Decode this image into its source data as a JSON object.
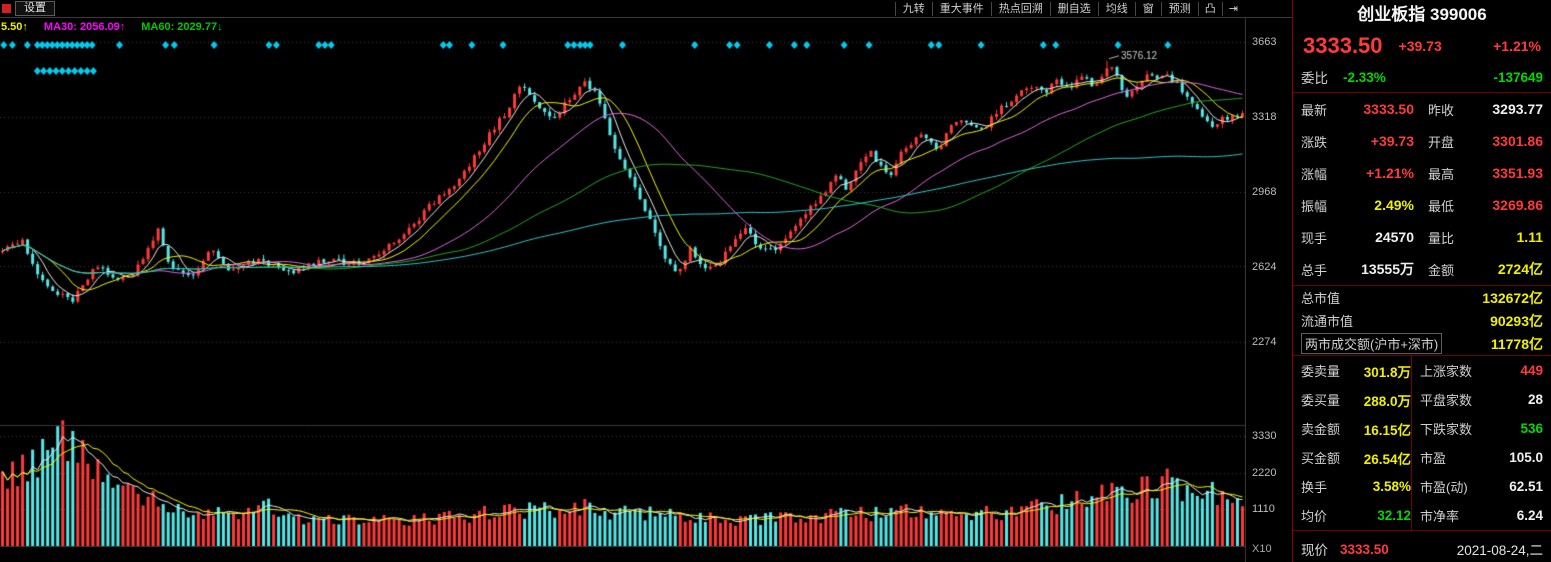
{
  "colors": {
    "red": "#ff3a3a",
    "green": "#00d800",
    "yellow": "#f0f000",
    "white": "#f0f0f0",
    "label": "#d0d0d0",
    "cyan_down": "#54e8e8",
    "grid": "#3a3a3a",
    "axis_text": "#bdbdbd",
    "panel_divider": "#6e0000",
    "diamond": "#00ccf0"
  },
  "toolbar": {
    "settings_label": "设置",
    "items": [
      "九转",
      "重大事件",
      "热点回溯",
      "删自选",
      "均线",
      "窗",
      "预测"
    ],
    "icons": [
      {
        "glyph": "凸",
        "name": "window-mode-icon"
      },
      {
        "glyph": "⇥",
        "name": "jump-latest-icon"
      }
    ]
  },
  "ma_labels": [
    {
      "text": "5.50↑",
      "color": "#f0f000"
    },
    {
      "text": "MA30: 2056.09↑",
      "color": "#ff00ff"
    },
    {
      "text": "MA60: 2029.77↓",
      "color": "#00c800"
    }
  ],
  "chart": {
    "price_axis": [
      "3663",
      "3318",
      "2968",
      "2624",
      "2274"
    ],
    "volume_axis": [
      "3330",
      "2220",
      "1110"
    ],
    "volume_unit": "X10",
    "peak_annotation": "3576.12"
  },
  "chart_data": {
    "type": "candlestick+volume",
    "candle_count": 248,
    "price_axis_values": [
      3663,
      3318,
      2968,
      2624,
      2274
    ],
    "volume_axis_values": [
      3330,
      2220,
      1110
    ],
    "last_close": 3333.5,
    "peak_high": 3576.12,
    "peak_t": 0.892,
    "up_color": "#ff3a3a",
    "down_color": "#54e8e8",
    "ma_windows": [
      5,
      10,
      30,
      60,
      120
    ],
    "ma_colors": [
      "#e8e8e8",
      "#f5f500",
      "#e066e0",
      "#22aa22",
      "#30c8c8"
    ],
    "vol_ma_colors": [
      "#e8e8e8",
      "#f5f500"
    ],
    "price_anchors": [
      [
        0,
        2690
      ],
      [
        0.016,
        2745
      ],
      [
        0.03,
        2560
      ],
      [
        0.056,
        2455
      ],
      [
        0.075,
        2625
      ],
      [
        0.1,
        2555
      ],
      [
        0.118,
        2705
      ],
      [
        0.126,
        2795
      ],
      [
        0.135,
        2620
      ],
      [
        0.155,
        2575
      ],
      [
        0.168,
        2710
      ],
      [
        0.185,
        2600
      ],
      [
        0.205,
        2655
      ],
      [
        0.23,
        2595
      ],
      [
        0.26,
        2655
      ],
      [
        0.285,
        2635
      ],
      [
        0.305,
        2690
      ],
      [
        0.325,
        2770
      ],
      [
        0.345,
        2910
      ],
      [
        0.365,
        3010
      ],
      [
        0.378,
        3110
      ],
      [
        0.392,
        3230
      ],
      [
        0.405,
        3330
      ],
      [
        0.418,
        3465
      ],
      [
        0.43,
        3370
      ],
      [
        0.443,
        3300
      ],
      [
        0.456,
        3390
      ],
      [
        0.47,
        3480
      ],
      [
        0.48,
        3415
      ],
      [
        0.493,
        3190
      ],
      [
        0.505,
        3040
      ],
      [
        0.515,
        2940
      ],
      [
        0.525,
        2790
      ],
      [
        0.535,
        2650
      ],
      [
        0.545,
        2605
      ],
      [
        0.555,
        2700
      ],
      [
        0.565,
        2620
      ],
      [
        0.578,
        2645
      ],
      [
        0.59,
        2755
      ],
      [
        0.6,
        2800
      ],
      [
        0.61,
        2715
      ],
      [
        0.625,
        2705
      ],
      [
        0.64,
        2805
      ],
      [
        0.652,
        2905
      ],
      [
        0.662,
        2950
      ],
      [
        0.673,
        3055
      ],
      [
        0.681,
        2985
      ],
      [
        0.69,
        3085
      ],
      [
        0.7,
        3150
      ],
      [
        0.708,
        3095
      ],
      [
        0.716,
        3050
      ],
      [
        0.726,
        3155
      ],
      [
        0.74,
        3230
      ],
      [
        0.754,
        3165
      ],
      [
        0.765,
        3265
      ],
      [
        0.776,
        3305
      ],
      [
        0.79,
        3255
      ],
      [
        0.8,
        3330
      ],
      [
        0.814,
        3400
      ],
      [
        0.828,
        3460
      ],
      [
        0.84,
        3425
      ],
      [
        0.85,
        3480
      ],
      [
        0.86,
        3445
      ],
      [
        0.87,
        3505
      ],
      [
        0.88,
        3455
      ],
      [
        0.892,
        3560
      ],
      [
        0.9,
        3485
      ],
      [
        0.908,
        3390
      ],
      [
        0.916,
        3480
      ],
      [
        0.924,
        3515
      ],
      [
        0.932,
        3485
      ],
      [
        0.94,
        3505
      ],
      [
        0.95,
        3455
      ],
      [
        0.958,
        3385
      ],
      [
        0.966,
        3325
      ],
      [
        0.974,
        3278
      ],
      [
        0.983,
        3305
      ],
      [
        1,
        3333.5
      ]
    ],
    "volume_anchors": [
      [
        0,
        1900
      ],
      [
        0.02,
        2500
      ],
      [
        0.045,
        3250
      ],
      [
        0.06,
        2750
      ],
      [
        0.08,
        2100
      ],
      [
        0.1,
        1700
      ],
      [
        0.13,
        1300
      ],
      [
        0.16,
        1050
      ],
      [
        0.19,
        900
      ],
      [
        0.21,
        1350
      ],
      [
        0.23,
        850
      ],
      [
        0.27,
        760
      ],
      [
        0.32,
        780
      ],
      [
        0.37,
        900
      ],
      [
        0.41,
        1120
      ],
      [
        0.45,
        1050
      ],
      [
        0.47,
        1150
      ],
      [
        0.5,
        1000
      ],
      [
        0.53,
        950
      ],
      [
        0.56,
        820
      ],
      [
        0.6,
        800
      ],
      [
        0.64,
        850
      ],
      [
        0.68,
        950
      ],
      [
        0.72,
        1000
      ],
      [
        0.75,
        1050
      ],
      [
        0.78,
        950
      ],
      [
        0.81,
        1050
      ],
      [
        0.84,
        1200
      ],
      [
        0.87,
        1400
      ],
      [
        0.9,
        1600
      ],
      [
        0.92,
        1750
      ],
      [
        0.94,
        1900
      ],
      [
        0.96,
        1700
      ],
      [
        0.98,
        1600
      ],
      [
        1,
        1450
      ]
    ],
    "diamond_rows": [
      {
        "y": 45,
        "t": [
          0.003,
          0.01,
          0.022,
          0.03,
          0.034,
          0.038,
          0.042,
          0.046,
          0.05,
          0.054,
          0.058,
          0.062,
          0.066,
          0.07,
          0.074,
          0.096,
          0.133,
          0.14,
          0.172,
          0.216,
          0.222,
          0.256,
          0.261,
          0.266,
          0.356,
          0.361,
          0.379,
          0.404,
          0.456,
          0.461,
          0.466,
          0.47,
          0.474,
          0.5,
          0.558,
          0.586,
          0.592,
          0.618,
          0.638,
          0.648,
          0.678,
          0.698,
          0.748,
          0.754,
          0.788,
          0.838,
          0.848,
          0.898,
          0.938
        ]
      },
      {
        "y": 71,
        "t": [
          0.03,
          0.035,
          0.04,
          0.045,
          0.05,
          0.055,
          0.06,
          0.065,
          0.07,
          0.075
        ]
      }
    ]
  },
  "quote_panel": {
    "title": "创业板指 399006",
    "price": "3333.50",
    "change": "+39.73",
    "change_pct": "+1.21%",
    "weibi_label": "委比",
    "weibi_value": "-2.33%",
    "weicha_value": "-137649",
    "rows_main": [
      {
        "l1": "最新",
        "v1": "3333.50",
        "c1": "red",
        "l2": "昨收",
        "v2": "3293.77",
        "c2": "white"
      },
      {
        "l1": "涨跌",
        "v1": "+39.73",
        "c1": "red",
        "l2": "开盘",
        "v2": "3301.86",
        "c2": "red"
      },
      {
        "l1": "涨幅",
        "v1": "+1.21%",
        "c1": "red",
        "l2": "最高",
        "v2": "3351.93",
        "c2": "red"
      },
      {
        "l1": "振幅",
        "v1": "2.49%",
        "c1": "yellow",
        "l2": "最低",
        "v2": "3269.86",
        "c2": "red"
      },
      {
        "l1": "现手",
        "v1": "24570",
        "c1": "white",
        "l2": "量比",
        "v2": "1.11",
        "c2": "yellow"
      },
      {
        "l1": "总手",
        "v1": "13555万",
        "c1": "white",
        "l2": "金额",
        "v2": "2724亿",
        "c2": "yellow"
      }
    ],
    "rows_cap": [
      {
        "label": "总市值",
        "value": "132672亿",
        "color": "yellow",
        "boxed": false
      },
      {
        "label": "流通市值",
        "value": "90293亿",
        "color": "yellow",
        "boxed": false
      },
      {
        "label": "两市成交额(沪市+深市)",
        "value": "11778亿",
        "color": "yellow",
        "boxed": true
      }
    ],
    "rows_detail": [
      {
        "l1": "委卖量",
        "v1": "301.8万",
        "c1": "yellow",
        "l2": "上涨家数",
        "v2": "449",
        "c2": "red"
      },
      {
        "l1": "委买量",
        "v1": "288.0万",
        "c1": "yellow",
        "l2": "平盘家数",
        "v2": "28",
        "c2": "white"
      },
      {
        "l1": "卖金额",
        "v1": "16.15亿",
        "c1": "yellow",
        "l2": "下跌家数",
        "v2": "536",
        "c2": "green"
      },
      {
        "l1": "买金额",
        "v1": "26.54亿",
        "c1": "yellow",
        "l2": "市盈",
        "v2": "105.0",
        "c2": "white"
      },
      {
        "l1": "换手",
        "v1": "3.58%",
        "c1": "yellow",
        "l2": "市盈(动)",
        "v2": "62.51",
        "c2": "white"
      },
      {
        "l1": "均价",
        "v1": "32.12",
        "c1": "green",
        "l2": "市净率",
        "v2": "6.24",
        "c2": "white"
      }
    ],
    "footer": {
      "label": "现价",
      "value": "3333.50",
      "color": "red",
      "date": "2021-08-24,二"
    }
  }
}
